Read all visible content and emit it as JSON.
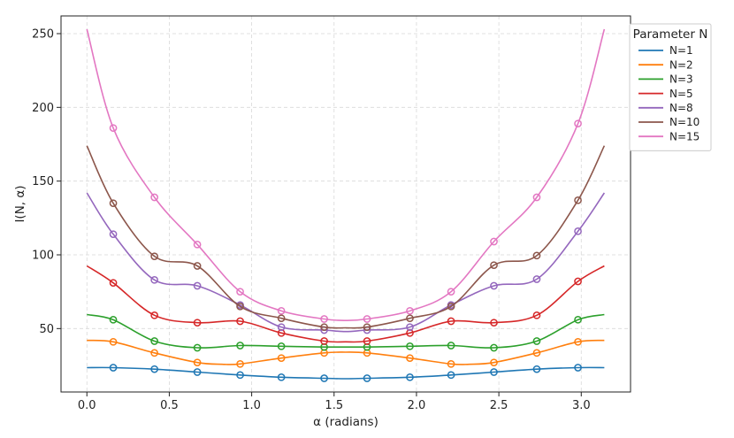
{
  "chart_data": {
    "type": "line",
    "xlabel": "α (radians)",
    "ylabel": "I(N, α)",
    "xlim": [
      -0.157,
      3.299
    ],
    "ylim": [
      7,
      262
    ],
    "xticks": [
      0.0,
      0.5,
      1.0,
      1.5,
      2.0,
      2.5,
      3.0
    ],
    "xtick_labels": [
      "0.0",
      "0.5",
      "1.0",
      "1.5",
      "2.0",
      "2.5",
      "3.0"
    ],
    "yticks": [
      50,
      100,
      150,
      200,
      250
    ],
    "ytick_labels": [
      "50",
      "100",
      "150",
      "200",
      "250"
    ],
    "grid": true,
    "legend": {
      "title": "Parameter N",
      "placement": "upper-right-outside"
    },
    "series": [
      {
        "name": "N=1",
        "color": "#1f77b4",
        "curve_x": [
          0.0,
          0.16,
          0.41,
          0.67,
          0.93,
          1.18,
          1.44,
          1.57,
          1.7,
          1.96,
          2.21,
          2.47,
          2.73,
          2.98,
          3.14
        ],
        "curve_y": [
          23.5,
          23.5,
          22.5,
          20.5,
          18.5,
          17.0,
          16.3,
          16.0,
          16.3,
          17.0,
          18.5,
          20.5,
          22.5,
          23.5,
          23.5
        ],
        "markers_x": [
          0.16,
          0.41,
          0.67,
          0.93,
          1.18,
          1.44,
          1.7,
          1.96,
          2.21,
          2.47,
          2.73,
          2.98
        ],
        "markers_y": [
          23.5,
          22.5,
          20.5,
          18.5,
          17.0,
          16.3,
          16.3,
          17.0,
          18.5,
          20.5,
          22.5,
          23.5
        ]
      },
      {
        "name": "N=2",
        "color": "#ff7f0e",
        "curve_x": [
          0.0,
          0.16,
          0.41,
          0.67,
          0.82,
          0.93,
          1.18,
          1.44,
          1.57,
          1.7,
          1.96,
          2.21,
          2.32,
          2.47,
          2.73,
          2.98,
          3.14
        ],
        "curve_y": [
          42.0,
          41.0,
          33.5,
          27.0,
          25.8,
          26.0,
          30.0,
          33.5,
          34.0,
          33.5,
          30.0,
          26.0,
          25.8,
          27.0,
          33.5,
          41.0,
          42.0
        ],
        "markers_x": [
          0.16,
          0.41,
          0.67,
          0.93,
          1.18,
          1.44,
          1.7,
          1.96,
          2.21,
          2.47,
          2.73,
          2.98
        ],
        "markers_y": [
          41.0,
          33.5,
          27.0,
          26.0,
          30.0,
          33.5,
          33.5,
          30.0,
          26.0,
          27.0,
          33.5,
          41.0
        ]
      },
      {
        "name": "N=3",
        "color": "#2ca02c",
        "curve_x": [
          0.0,
          0.16,
          0.41,
          0.67,
          0.93,
          1.18,
          1.44,
          1.57,
          1.7,
          1.96,
          2.21,
          2.47,
          2.73,
          2.98,
          3.14
        ],
        "curve_y": [
          59.5,
          56.0,
          41.5,
          37.0,
          38.5,
          38.0,
          37.5,
          37.5,
          37.5,
          38.0,
          38.5,
          37.0,
          41.5,
          56.0,
          59.5
        ],
        "markers_x": [
          0.16,
          0.41,
          0.67,
          0.93,
          1.18,
          1.44,
          1.7,
          1.96,
          2.21,
          2.47,
          2.73,
          2.98
        ],
        "markers_y": [
          56.0,
          41.5,
          37.0,
          38.5,
          38.0,
          37.5,
          37.5,
          38.0,
          38.5,
          37.0,
          41.5,
          56.0
        ]
      },
      {
        "name": "N=5",
        "color": "#d62728",
        "curve_x": [
          0.0,
          0.16,
          0.41,
          0.67,
          0.93,
          1.18,
          1.44,
          1.57,
          1.7,
          1.96,
          2.21,
          2.47,
          2.73,
          2.98,
          3.14
        ],
        "curve_y": [
          92.5,
          81.0,
          59.0,
          54.0,
          55.0,
          47.0,
          41.5,
          41.0,
          41.5,
          47.0,
          55.0,
          54.0,
          59.0,
          82.0,
          92.5
        ],
        "markers_x": [
          0.16,
          0.41,
          0.67,
          0.93,
          1.18,
          1.44,
          1.7,
          1.96,
          2.21,
          2.47,
          2.73,
          2.98
        ],
        "markers_y": [
          81.0,
          59.0,
          54.0,
          55.0,
          47.0,
          41.5,
          41.5,
          47.0,
          55.0,
          54.0,
          59.0,
          82.0
        ]
      },
      {
        "name": "N=8",
        "color": "#9467bd",
        "curve_x": [
          0.0,
          0.16,
          0.41,
          0.67,
          0.93,
          1.18,
          1.44,
          1.57,
          1.7,
          1.96,
          2.21,
          2.47,
          2.73,
          2.98,
          3.14
        ],
        "curve_y": [
          142.0,
          114.0,
          83.0,
          79.0,
          66.0,
          51.0,
          49.0,
          48.0,
          49.0,
          51.0,
          66.0,
          79.0,
          83.5,
          116.0,
          142.0
        ],
        "markers_x": [
          0.16,
          0.41,
          0.67,
          0.93,
          1.18,
          1.44,
          1.7,
          1.96,
          2.21,
          2.47,
          2.73,
          2.98
        ],
        "markers_y": [
          114.0,
          83.0,
          79.0,
          66.0,
          51.0,
          49.0,
          49.0,
          51.0,
          66.0,
          79.0,
          83.5,
          116.0
        ]
      },
      {
        "name": "N=10",
        "color": "#8c564b",
        "curve_x": [
          0.0,
          0.16,
          0.41,
          0.67,
          0.93,
          1.18,
          1.44,
          1.57,
          1.7,
          1.96,
          2.21,
          2.47,
          2.73,
          2.98,
          3.14
        ],
        "curve_y": [
          174.0,
          135.0,
          99.0,
          92.5,
          65.0,
          57.0,
          51.0,
          50.5,
          51.0,
          57.0,
          65.0,
          93.0,
          99.5,
          137.0,
          174.0
        ],
        "markers_x": [
          0.16,
          0.41,
          0.67,
          0.93,
          1.18,
          1.44,
          1.7,
          1.96,
          2.21,
          2.47,
          2.73,
          2.98
        ],
        "markers_y": [
          135.0,
          99.0,
          92.5,
          65.0,
          57.0,
          51.0,
          51.0,
          57.0,
          65.0,
          93.0,
          99.5,
          137.0
        ]
      },
      {
        "name": "N=15",
        "color": "#e377c2",
        "curve_x": [
          0.0,
          0.16,
          0.41,
          0.67,
          0.93,
          1.18,
          1.44,
          1.57,
          1.7,
          1.96,
          2.21,
          2.47,
          2.73,
          2.98,
          3.14
        ],
        "curve_y": [
          253.0,
          186.0,
          139.0,
          107.0,
          75.0,
          62.0,
          56.5,
          55.5,
          56.5,
          62.0,
          75.0,
          109.0,
          139.0,
          189.0,
          253.0
        ],
        "markers_x": [
          0.16,
          0.41,
          0.67,
          0.93,
          1.18,
          1.44,
          1.7,
          1.96,
          2.21,
          2.47,
          2.73,
          2.98
        ],
        "markers_y": [
          186.0,
          139.0,
          107.0,
          75.0,
          62.0,
          56.5,
          56.5,
          62.0,
          75.0,
          109.0,
          139.0,
          189.0
        ]
      }
    ]
  }
}
